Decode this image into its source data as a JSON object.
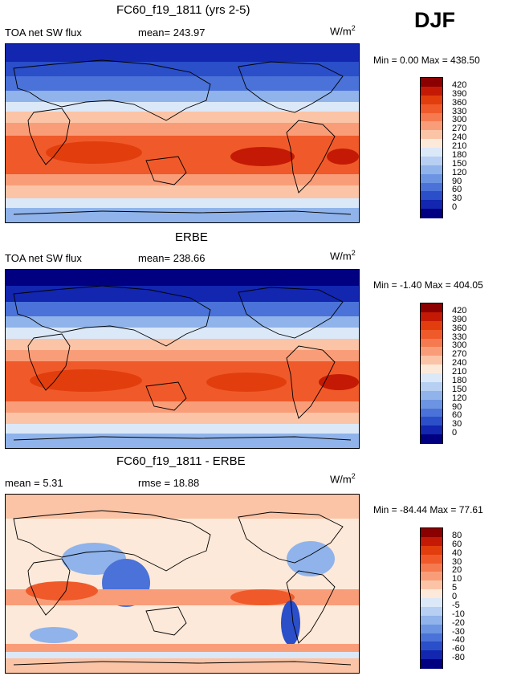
{
  "season": "DJF",
  "panels": [
    {
      "title": "FC60_f19_1811 (yrs 2-5)",
      "left_label": "TOA net SW flux",
      "mid_label": "mean= 243.97",
      "units_base": "W/m",
      "units_exp": "2",
      "minmax": "Min =    0.00 Max = 438.50",
      "levels": [
        "420",
        "390",
        "360",
        "330",
        "300",
        "270",
        "240",
        "210",
        "180",
        "150",
        "120",
        "90",
        "60",
        "30",
        "0"
      ],
      "colors": [
        "#8b0000",
        "#c41a05",
        "#e23e0d",
        "#f05a2a",
        "#f67a4f",
        "#f99d79",
        "#fbc4a6",
        "#fde9d9",
        "#dbe8f8",
        "#b6cff2",
        "#8fb3ea",
        "#6c94e2",
        "#4a72d8",
        "#2b4ec9",
        "#1226b0",
        "#000080"
      ]
    },
    {
      "title": "ERBE",
      "left_label": "TOA net SW flux",
      "mid_label": "mean= 238.66",
      "units_base": "W/m",
      "units_exp": "2",
      "minmax": "Min =  -1.40 Max = 404.05",
      "levels": [
        "420",
        "390",
        "360",
        "330",
        "300",
        "270",
        "240",
        "210",
        "180",
        "150",
        "120",
        "90",
        "60",
        "30",
        "0"
      ],
      "colors": [
        "#8b0000",
        "#c41a05",
        "#e23e0d",
        "#f05a2a",
        "#f67a4f",
        "#f99d79",
        "#fbc4a6",
        "#fde9d9",
        "#dbe8f8",
        "#b6cff2",
        "#8fb3ea",
        "#6c94e2",
        "#4a72d8",
        "#2b4ec9",
        "#1226b0",
        "#000080"
      ]
    },
    {
      "title": "FC60_f19_1811 - ERBE",
      "left_label": "mean =    5.31",
      "mid_label": "rmse =   18.88",
      "units_base": "W/m",
      "units_exp": "2",
      "minmax": "Min = -84.44 Max =  77.61",
      "levels": [
        "80",
        "60",
        "40",
        "30",
        "20",
        "10",
        "5",
        "0",
        "-5",
        "-10",
        "-20",
        "-30",
        "-40",
        "-60",
        "-80"
      ],
      "colors": [
        "#8b0000",
        "#c41a05",
        "#e23e0d",
        "#f05a2a",
        "#f67a4f",
        "#f99d79",
        "#fbc4a6",
        "#fde9d9",
        "#dbe8f8",
        "#b6cff2",
        "#8fb3ea",
        "#6c94e2",
        "#4a72d8",
        "#2b4ec9",
        "#1226b0",
        "#000080"
      ]
    }
  ]
}
